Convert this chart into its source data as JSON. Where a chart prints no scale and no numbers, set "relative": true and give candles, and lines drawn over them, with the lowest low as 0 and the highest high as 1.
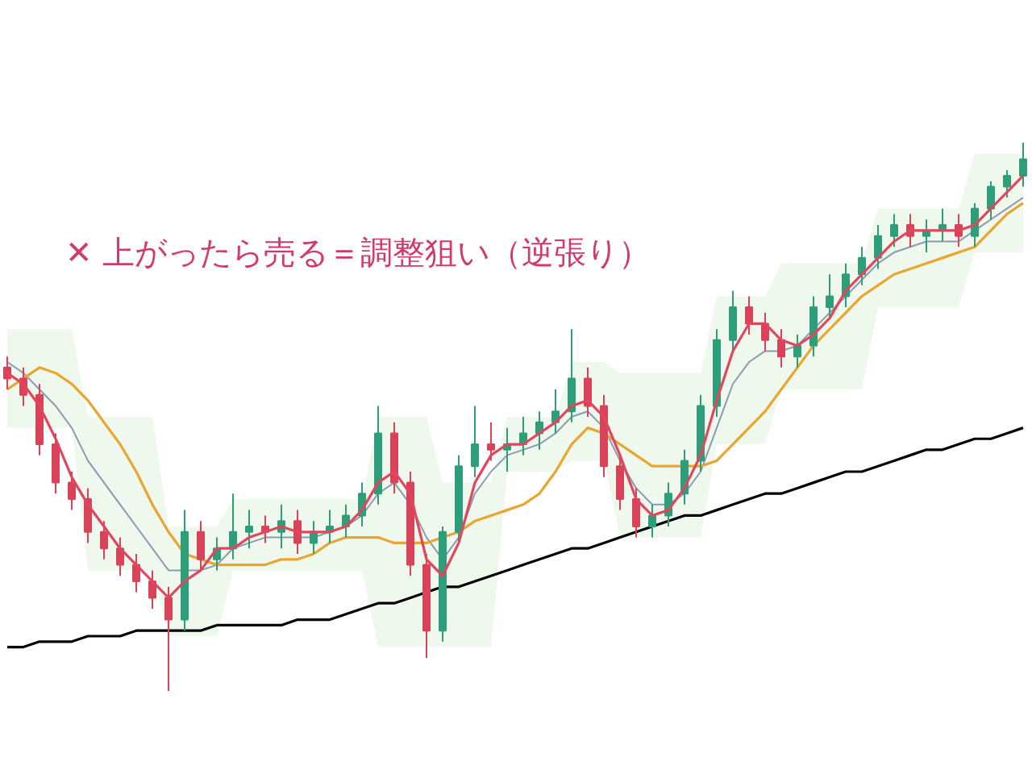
{
  "chart_data": {
    "type": "candlestick",
    "relative": true,
    "title": "✕ 上がったら売る＝調整狙い（逆張り）",
    "categories": [
      null,
      null,
      null,
      null,
      null,
      null,
      null,
      null,
      null,
      null,
      null,
      null,
      null,
      null,
      null,
      null,
      null,
      null,
      null,
      null,
      null,
      null,
      null,
      null,
      null,
      null,
      null,
      null,
      null,
      null,
      null,
      null,
      null,
      null,
      null,
      null,
      null,
      null,
      null,
      null,
      null,
      null,
      null,
      null,
      null,
      null,
      null,
      null,
      null,
      null,
      null,
      null,
      null,
      null,
      null,
      null,
      null,
      null,
      null,
      null,
      null,
      null,
      null,
      null
    ],
    "ohlc": [
      [
        0.59,
        0.61,
        0.55,
        0.57
      ],
      [
        0.57,
        0.59,
        0.52,
        0.54
      ],
      [
        0.54,
        0.56,
        0.43,
        0.45
      ],
      [
        0.45,
        0.47,
        0.36,
        0.38
      ],
      [
        0.38,
        0.4,
        0.33,
        0.35
      ],
      [
        0.35,
        0.37,
        0.27,
        0.29
      ],
      [
        0.29,
        0.31,
        0.24,
        0.26
      ],
      [
        0.26,
        0.28,
        0.21,
        0.23
      ],
      [
        0.23,
        0.25,
        0.18,
        0.2
      ],
      [
        0.2,
        0.22,
        0.15,
        0.17
      ],
      [
        0.17,
        0.19,
        0,
        0.13
      ],
      [
        0.13,
        0.33,
        0.11,
        0.29
      ],
      [
        0.29,
        0.31,
        0.22,
        0.24
      ],
      [
        0.24,
        0.28,
        0.22,
        0.26
      ],
      [
        0.26,
        0.36,
        0.24,
        0.29
      ],
      [
        0.29,
        0.33,
        0.26,
        0.3
      ],
      [
        0.3,
        0.32,
        0.27,
        0.29
      ],
      [
        0.29,
        0.34,
        0.26,
        0.31
      ],
      [
        0.31,
        0.33,
        0.25,
        0.27
      ],
      [
        0.27,
        0.31,
        0.25,
        0.29
      ],
      [
        0.29,
        0.33,
        0.27,
        0.3
      ],
      [
        0.3,
        0.34,
        0.28,
        0.32
      ],
      [
        0.32,
        0.38,
        0.3,
        0.36
      ],
      [
        0.36,
        0.52,
        0.34,
        0.47
      ],
      [
        0.47,
        0.49,
        0.36,
        0.38
      ],
      [
        0.38,
        0.4,
        0.21,
        0.23
      ],
      [
        0.23,
        0.25,
        0.06,
        0.11
      ],
      [
        0.11,
        0.3,
        0.09,
        0.29
      ],
      [
        0.29,
        0.43,
        0.27,
        0.41
      ],
      [
        0.41,
        0.52,
        0.39,
        0.45
      ],
      [
        0.45,
        0.49,
        0.42,
        0.44
      ],
      [
        0.44,
        0.48,
        0.4,
        0.45
      ],
      [
        0.45,
        0.5,
        0.43,
        0.47
      ],
      [
        0.47,
        0.51,
        0.44,
        0.49
      ],
      [
        0.49,
        0.55,
        0.47,
        0.51
      ],
      [
        0.51,
        0.66,
        0.49,
        0.57
      ],
      [
        0.57,
        0.59,
        0.5,
        0.52
      ],
      [
        0.52,
        0.54,
        0.39,
        0.41
      ],
      [
        0.41,
        0.43,
        0.33,
        0.35
      ],
      [
        0.35,
        0.37,
        0.28,
        0.3
      ],
      [
        0.3,
        0.34,
        0.28,
        0.32
      ],
      [
        0.32,
        0.38,
        0.3,
        0.36
      ],
      [
        0.36,
        0.44,
        0.34,
        0.42
      ],
      [
        0.42,
        0.54,
        0.4,
        0.52
      ],
      [
        0.52,
        0.66,
        0.5,
        0.64
      ],
      [
        0.64,
        0.73,
        0.62,
        0.7
      ],
      [
        0.7,
        0.72,
        0.65,
        0.67
      ],
      [
        0.67,
        0.69,
        0.62,
        0.64
      ],
      [
        0.64,
        0.66,
        0.59,
        0.61
      ],
      [
        0.61,
        0.65,
        0.59,
        0.63
      ],
      [
        0.63,
        0.72,
        0.61,
        0.7
      ],
      [
        0.7,
        0.76,
        0.68,
        0.72
      ],
      [
        0.72,
        0.78,
        0.7,
        0.76
      ],
      [
        0.76,
        0.81,
        0.74,
        0.79
      ],
      [
        0.79,
        0.85,
        0.77,
        0.83
      ],
      [
        0.83,
        0.87,
        0.81,
        0.85
      ],
      [
        0.85,
        0.87,
        0.81,
        0.83
      ],
      [
        0.83,
        0.86,
        0.8,
        0.84
      ],
      [
        0.84,
        0.88,
        0.82,
        0.85
      ],
      [
        0.85,
        0.87,
        0.81,
        0.83
      ],
      [
        0.83,
        0.89,
        0.81,
        0.88
      ],
      [
        0.88,
        0.93,
        0.86,
        0.92
      ],
      [
        0.92,
        0.95,
        0.9,
        0.94
      ],
      [
        0.94,
        1.0,
        0.92,
        0.97
      ]
    ],
    "series": [
      {
        "type": "line",
        "color": "#8a9bb0",
        "values": [
          0.6,
          0.58,
          0.55,
          0.52,
          0.48,
          0.42,
          0.38,
          0.34,
          0.3,
          0.26,
          0.22,
          0.22,
          0.22,
          0.23,
          0.26,
          0.27,
          0.28,
          0.28,
          0.28,
          0.28,
          0.29,
          0.3,
          0.32,
          0.36,
          0.38,
          0.34,
          0.28,
          0.24,
          0.28,
          0.36,
          0.4,
          0.43,
          0.44,
          0.45,
          0.47,
          0.5,
          0.51,
          0.48,
          0.42,
          0.37,
          0.34,
          0.34,
          0.36,
          0.4,
          0.48,
          0.56,
          0.6,
          0.62,
          0.62,
          0.63,
          0.66,
          0.69,
          0.72,
          0.75,
          0.78,
          0.8,
          0.81,
          0.82,
          0.82,
          0.82,
          0.84,
          0.86,
          0.88,
          0.9
        ],
        "upper": [
          0.66,
          0.66,
          0.66,
          0.66,
          0.66,
          0.5,
          0.5,
          0.5,
          0.5,
          0.5,
          0.3,
          0.3,
          0.3,
          0.3,
          0.35,
          0.35,
          0.35,
          0.35,
          0.35,
          0.35,
          0.35,
          0.35,
          0.35,
          0.5,
          0.5,
          0.5,
          0.5,
          0.38,
          0.38,
          0.38,
          0.38,
          0.5,
          0.5,
          0.5,
          0.5,
          0.6,
          0.6,
          0.6,
          0.58,
          0.58,
          0.58,
          0.58,
          0.58,
          0.58,
          0.72,
          0.72,
          0.72,
          0.72,
          0.78,
          0.78,
          0.78,
          0.78,
          0.78,
          0.78,
          0.88,
          0.88,
          0.88,
          0.88,
          0.88,
          0.88,
          0.98,
          0.98,
          0.98,
          0.98
        ],
        "lower": [
          0.48,
          0.48,
          0.48,
          0.48,
          0.48,
          0.22,
          0.22,
          0.22,
          0.22,
          0.22,
          0.1,
          0.1,
          0.1,
          0.1,
          0.22,
          0.22,
          0.22,
          0.22,
          0.22,
          0.22,
          0.22,
          0.22,
          0.22,
          0.08,
          0.08,
          0.08,
          0.08,
          0.08,
          0.08,
          0.08,
          0.08,
          0.4,
          0.4,
          0.4,
          0.4,
          0.42,
          0.42,
          0.42,
          0.28,
          0.28,
          0.28,
          0.28,
          0.28,
          0.28,
          0.45,
          0.45,
          0.45,
          0.45,
          0.55,
          0.55,
          0.55,
          0.55,
          0.55,
          0.55,
          0.7,
          0.7,
          0.7,
          0.7,
          0.7,
          0.7,
          0.8,
          0.8,
          0.8,
          0.8
        ]
      },
      {
        "type": "line",
        "color": "#e8a530",
        "values": [
          0.55,
          0.57,
          0.59,
          0.58,
          0.56,
          0.53,
          0.49,
          0.45,
          0.4,
          0.34,
          0.29,
          0.25,
          0.24,
          0.23,
          0.23,
          0.23,
          0.23,
          0.24,
          0.24,
          0.25,
          0.27,
          0.28,
          0.28,
          0.28,
          0.27,
          0.27,
          0.27,
          0.28,
          0.29,
          0.31,
          0.32,
          0.33,
          0.34,
          0.36,
          0.4,
          0.45,
          0.48,
          0.47,
          0.45,
          0.43,
          0.41,
          0.41,
          0.41,
          0.41,
          0.42,
          0.45,
          0.48,
          0.51,
          0.55,
          0.59,
          0.63,
          0.66,
          0.69,
          0.72,
          0.74,
          0.76,
          0.77,
          0.78,
          0.79,
          0.8,
          0.81,
          0.84,
          0.87,
          0.89
        ]
      },
      {
        "type": "line",
        "color": "#000000",
        "values": [
          0.08,
          0.08,
          0.09,
          0.09,
          0.09,
          0.1,
          0.1,
          0.1,
          0.11,
          0.11,
          0.11,
          0.11,
          0.11,
          0.12,
          0.12,
          0.12,
          0.12,
          0.12,
          0.13,
          0.13,
          0.13,
          0.14,
          0.15,
          0.16,
          0.16,
          0.17,
          0.18,
          0.19,
          0.19,
          0.2,
          0.21,
          0.22,
          0.23,
          0.24,
          0.25,
          0.26,
          0.26,
          0.27,
          0.28,
          0.29,
          0.3,
          0.31,
          0.32,
          0.32,
          0.33,
          0.34,
          0.35,
          0.36,
          0.36,
          0.37,
          0.38,
          0.39,
          0.4,
          0.4,
          0.41,
          0.42,
          0.43,
          0.44,
          0.44,
          0.45,
          0.46,
          0.46,
          0.47,
          0.48
        ]
      },
      {
        "type": "line",
        "color": "#e0465e",
        "values": [
          0.58,
          0.56,
          0.52,
          0.46,
          0.39,
          0.34,
          0.3,
          0.26,
          0.23,
          0.2,
          0.17,
          0.2,
          0.22,
          0.26,
          0.26,
          0.28,
          0.29,
          0.3,
          0.29,
          0.29,
          0.29,
          0.3,
          0.33,
          0.38,
          0.4,
          0.36,
          0.24,
          0.21,
          0.27,
          0.38,
          0.43,
          0.45,
          0.45,
          0.47,
          0.49,
          0.52,
          0.53,
          0.5,
          0.43,
          0.35,
          0.32,
          0.33,
          0.37,
          0.43,
          0.53,
          0.62,
          0.67,
          0.67,
          0.64,
          0.63,
          0.65,
          0.68,
          0.73,
          0.76,
          0.79,
          0.82,
          0.84,
          0.84,
          0.84,
          0.84,
          0.85,
          0.88,
          0.91,
          0.94
        ]
      }
    ],
    "colors": [
      "#d9435a",
      "#d9435a",
      "#d9435a",
      "#d9435a",
      "#d9435a",
      "#d9435a",
      "#d9435a",
      "#d9435a",
      "#d9435a",
      "#d9435a",
      "#d9435a",
      "#2e9e7a",
      "#d9435a",
      "#2e9e7a",
      "#2e9e7a",
      "#2e9e7a",
      "#d9435a",
      "#2e9e7a",
      "#d9435a",
      "#2e9e7a",
      "#2e9e7a",
      "#2e9e7a",
      "#2e9e7a",
      "#2e9e7a",
      "#d9435a",
      "#d9435a",
      "#d9435a",
      "#2e9e7a",
      "#2e9e7a",
      "#2e9e7a",
      "#d9435a",
      "#2e9e7a",
      "#2e9e7a",
      "#2e9e7a",
      "#2e9e7a",
      "#2e9e7a",
      "#d9435a",
      "#d9435a",
      "#d9435a",
      "#d9435a",
      "#2e9e7a",
      "#2e9e7a",
      "#2e9e7a",
      "#2e9e7a",
      "#2e9e7a",
      "#2e9e7a",
      "#d9435a",
      "#d9435a",
      "#d9435a",
      "#2e9e7a",
      "#2e9e7a",
      "#2e9e7a",
      "#2e9e7a",
      "#2e9e7a",
      "#2e9e7a",
      "#2e9e7a",
      "#d9435a",
      "#2e9e7a",
      "#2e9e7a",
      "#d9435a",
      "#2e9e7a",
      "#2e9e7a",
      "#2e9e7a",
      "#2e9e7a"
    ]
  }
}
